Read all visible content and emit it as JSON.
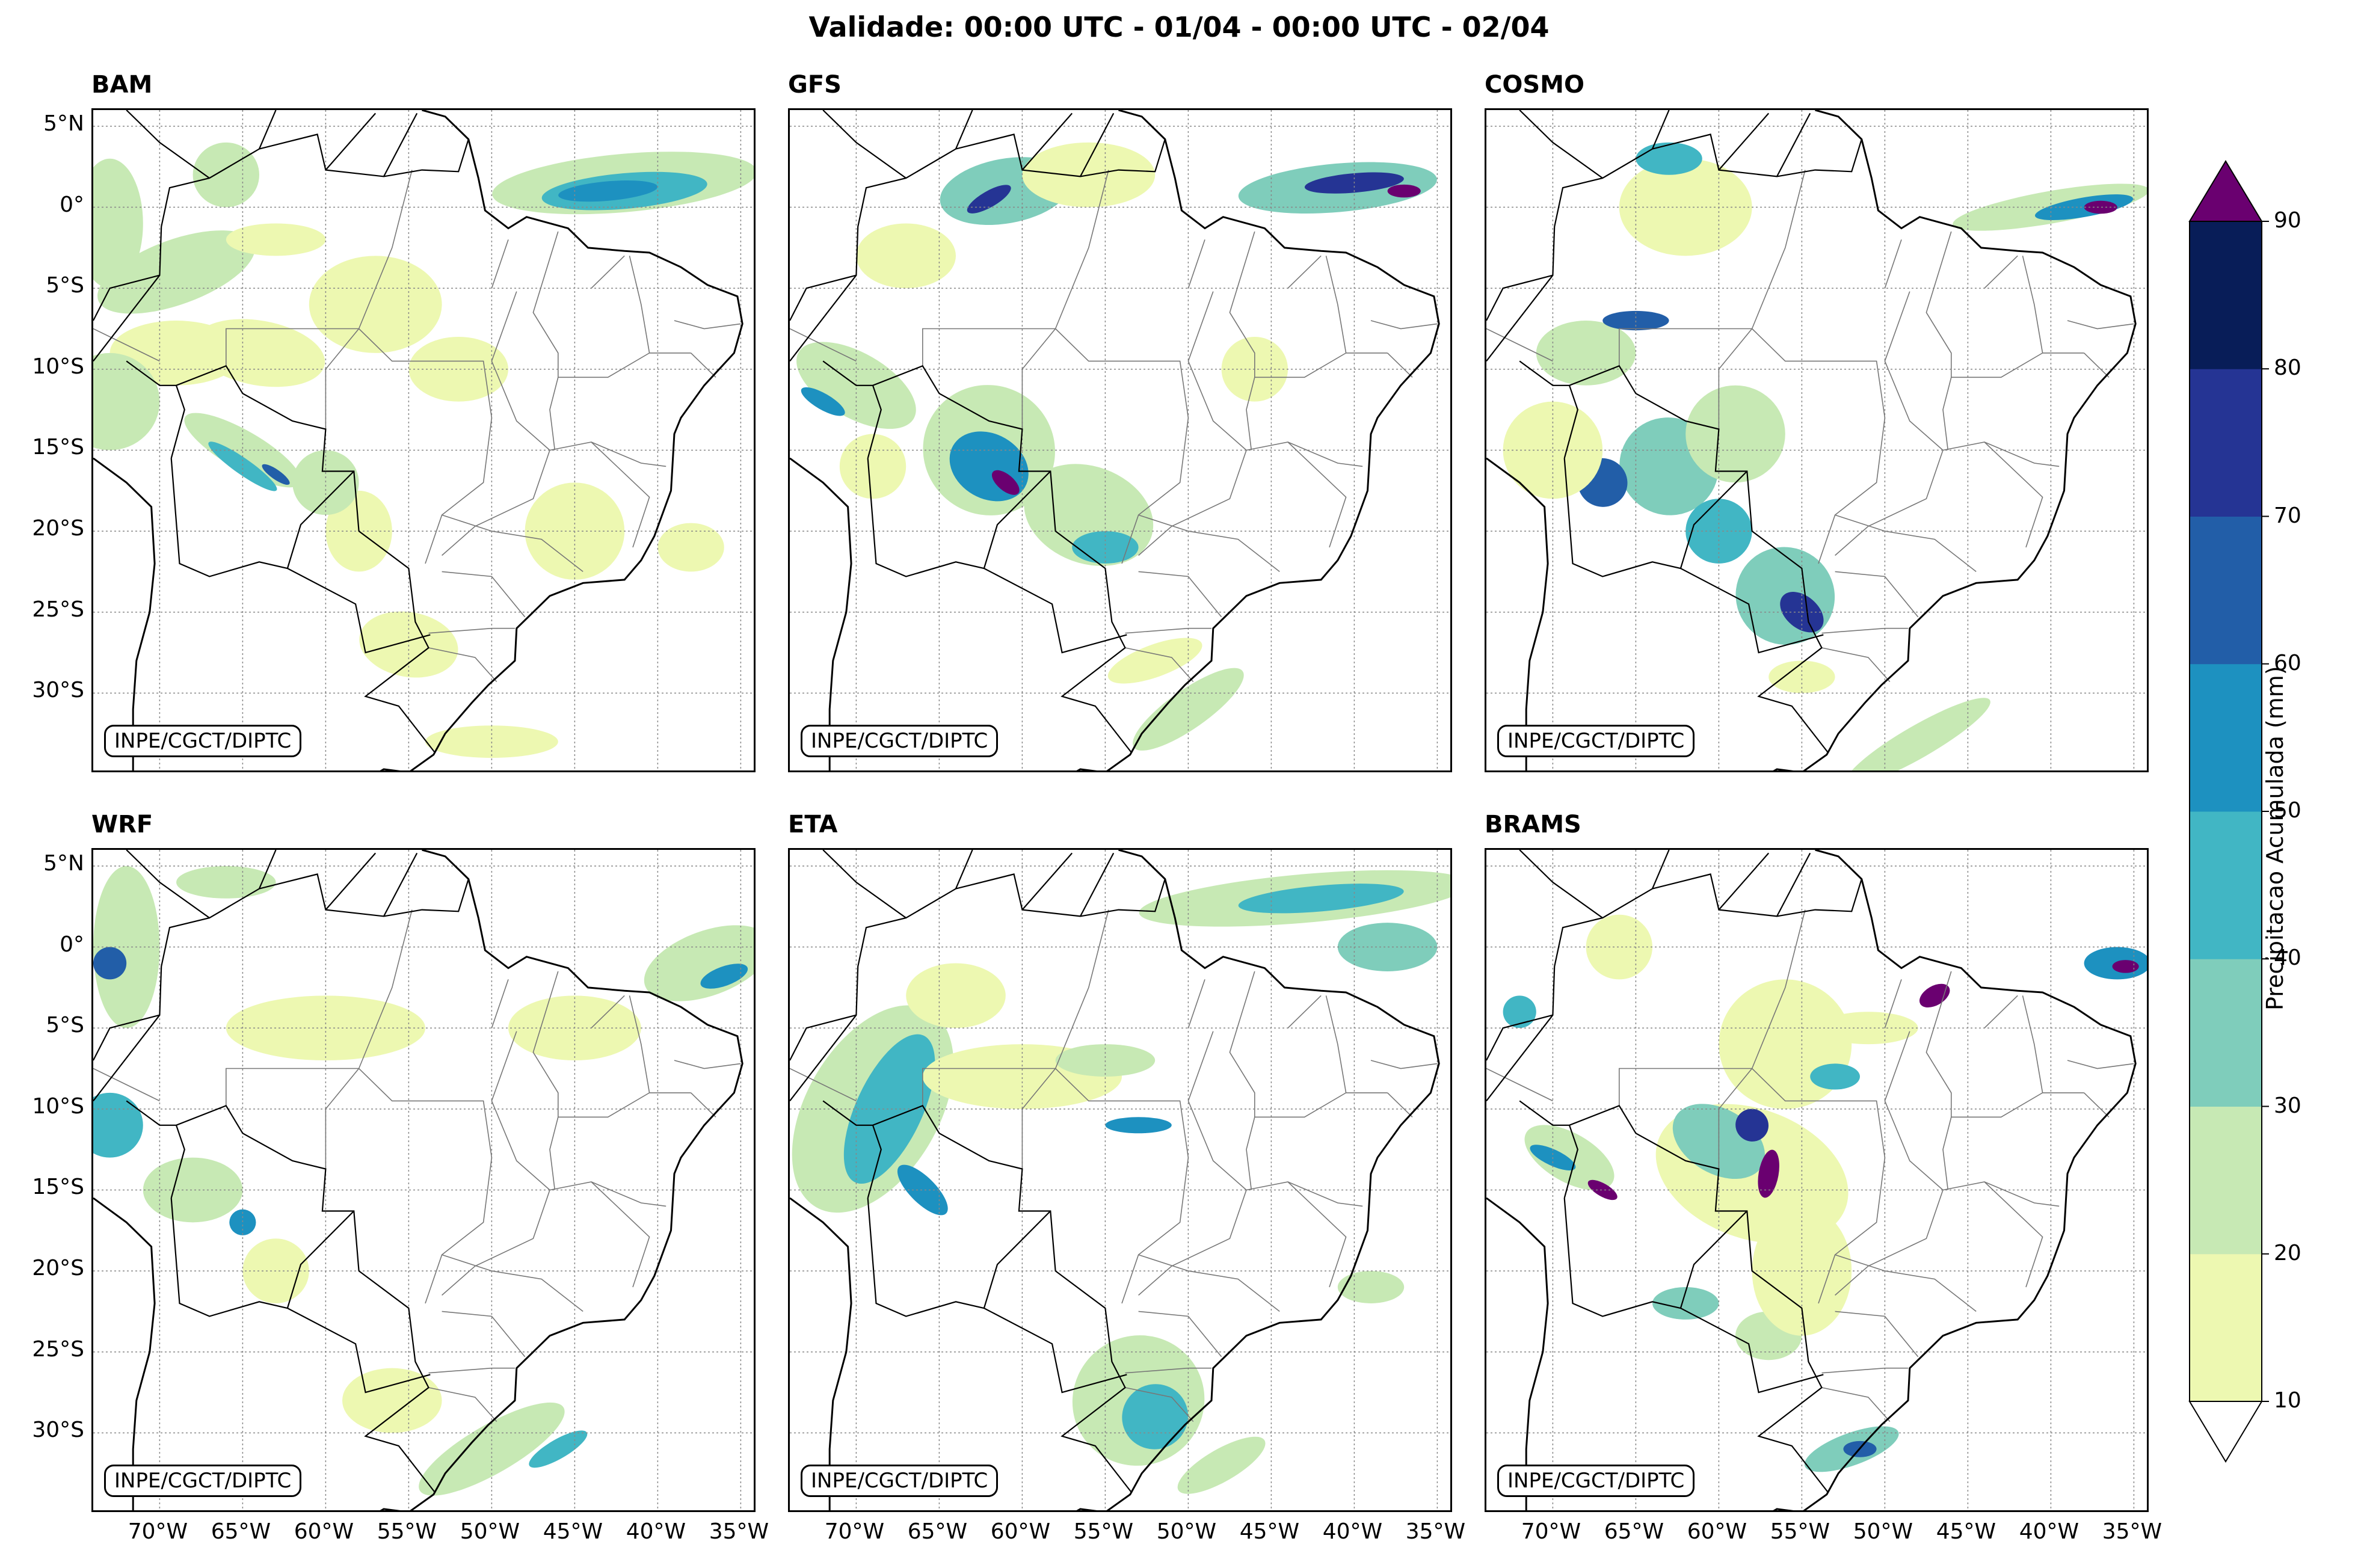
{
  "title": "Validade: 00:00 UTC - 01/04 - 00:00 UTC - 02/04",
  "credit": "INPE/CGCT/DIPTC",
  "panels": [
    {
      "name": "BAM"
    },
    {
      "name": "GFS"
    },
    {
      "name": "COSMO"
    },
    {
      "name": "WRF"
    },
    {
      "name": "ETA"
    },
    {
      "name": "BRAMS"
    }
  ],
  "lat_ticks": [
    "5°N",
    "0°",
    "5°S",
    "10°S",
    "15°S",
    "20°S",
    "25°S",
    "30°S"
  ],
  "lon_ticks": [
    "70°W",
    "65°W",
    "60°W",
    "55°W",
    "50°W",
    "45°W",
    "40°W",
    "35°W"
  ],
  "colorbar": {
    "label": "Precipitacao Acumulada (mm)",
    "ticks": [
      "10",
      "20",
      "30",
      "40",
      "50",
      "60",
      "70",
      "80",
      "90"
    ],
    "colors": [
      "#edf8b1",
      "#c7e9b4",
      "#7fcdbb",
      "#41b6c4",
      "#1d91c0",
      "#225ea8",
      "#253494",
      "#081d58"
    ],
    "under_color": "#ffffff",
    "over_color": "#6a0070"
  }
}
